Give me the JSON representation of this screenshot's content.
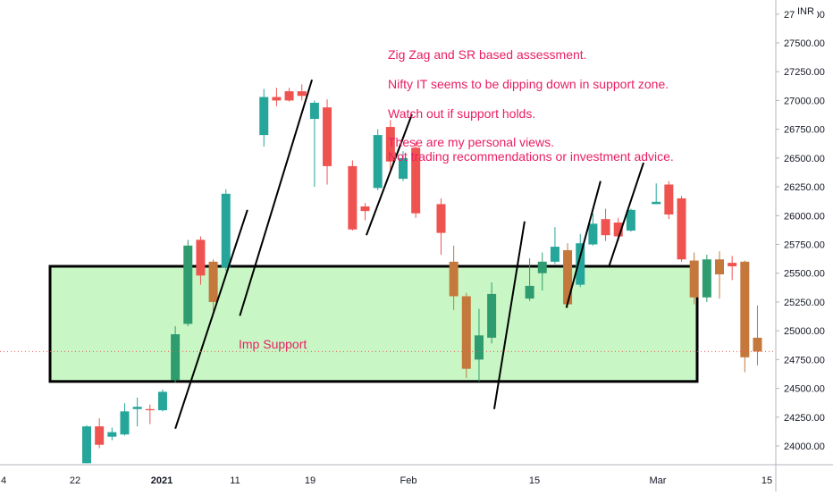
{
  "chart_data": {
    "type": "candlestick",
    "currency": "INR",
    "x_ticks": [
      "4",
      "22",
      "2021",
      "11",
      "19",
      "Feb",
      "15",
      "Mar",
      "15"
    ],
    "y_ticks": [
      "27750.00",
      "27500.00",
      "27250.00",
      "27000.00",
      "26750.00",
      "26500.00",
      "26250.00",
      "26000.00",
      "25750.00",
      "25500.00",
      "25250.00",
      "25000.00",
      "24750.00",
      "24500.00",
      "24250.00",
      "24000.00"
    ],
    "ylim": [
      23850,
      27800
    ],
    "colors": {
      "up": "#26a69a",
      "down": "#ef5350",
      "in_zone_up": "#2e9c6e",
      "in_zone_down": "#c4783c",
      "zone_fill": "#c8f7c5",
      "note_text": "#e91e63"
    },
    "candles": [
      {
        "x": 1,
        "o": 23850,
        "h": 24180,
        "l": 23850,
        "c": 24170
      },
      {
        "x": 2,
        "o": 24170,
        "h": 24240,
        "l": 23980,
        "c": 24010
      },
      {
        "x": 3,
        "o": 24080,
        "h": 24160,
        "l": 24050,
        "c": 24120
      },
      {
        "x": 4,
        "o": 24100,
        "h": 24370,
        "l": 24090,
        "c": 24300
      },
      {
        "x": 5,
        "o": 24320,
        "h": 24420,
        "l": 24170,
        "c": 24340
      },
      {
        "x": 6,
        "o": 24320,
        "h": 24360,
        "l": 24190,
        "c": 24310
      },
      {
        "x": 7,
        "o": 24310,
        "h": 24490,
        "l": 24300,
        "c": 24470
      },
      {
        "x": 8,
        "o": 24570,
        "h": 25040,
        "l": 24550,
        "c": 24970
      },
      {
        "x": 9,
        "o": 25060,
        "h": 25790,
        "l": 25040,
        "c": 25740
      },
      {
        "x": 10,
        "o": 25790,
        "h": 25820,
        "l": 25400,
        "c": 25480
      },
      {
        "x": 11,
        "o": 25600,
        "h": 25620,
        "l": 25170,
        "c": 25250
      },
      {
        "x": 12,
        "o": 25550,
        "h": 26230,
        "l": 25520,
        "c": 26190
      },
      {
        "x": 15,
        "o": 26700,
        "h": 27100,
        "l": 26600,
        "c": 27030
      },
      {
        "x": 16,
        "o": 27030,
        "h": 27110,
        "l": 26950,
        "c": 27000
      },
      {
        "x": 17,
        "o": 27080,
        "h": 27110,
        "l": 26990,
        "c": 27000
      },
      {
        "x": 18,
        "o": 27080,
        "h": 27140,
        "l": 27000,
        "c": 27040
      },
      {
        "x": 19,
        "o": 26840,
        "h": 27000,
        "l": 26250,
        "c": 26980
      },
      {
        "x": 20,
        "o": 26940,
        "h": 27010,
        "l": 26270,
        "c": 26430
      },
      {
        "x": 22,
        "o": 26430,
        "h": 26480,
        "l": 25870,
        "c": 25880
      },
      {
        "x": 23,
        "o": 26080,
        "h": 26110,
        "l": 25960,
        "c": 26040
      },
      {
        "x": 24,
        "o": 26240,
        "h": 26750,
        "l": 26220,
        "c": 26700
      },
      {
        "x": 25,
        "o": 26770,
        "h": 26830,
        "l": 26370,
        "c": 26470
      },
      {
        "x": 26,
        "o": 26320,
        "h": 26560,
        "l": 26300,
        "c": 26500
      },
      {
        "x": 27,
        "o": 26590,
        "h": 26640,
        "l": 25980,
        "c": 26020
      },
      {
        "x": 29,
        "o": 26100,
        "h": 26150,
        "l": 25660,
        "c": 25850
      },
      {
        "x": 30,
        "o": 25600,
        "h": 25740,
        "l": 25180,
        "c": 25300
      },
      {
        "x": 31,
        "o": 25300,
        "h": 25330,
        "l": 24590,
        "c": 24670
      },
      {
        "x": 32,
        "o": 24750,
        "h": 25190,
        "l": 24560,
        "c": 24960
      },
      {
        "x": 33,
        "o": 24940,
        "h": 25420,
        "l": 24890,
        "c": 25320
      },
      {
        "x": 36,
        "o": 25280,
        "h": 25630,
        "l": 25260,
        "c": 25390
      },
      {
        "x": 37,
        "o": 25500,
        "h": 25680,
        "l": 25350,
        "c": 25600
      },
      {
        "x": 38,
        "o": 25600,
        "h": 25900,
        "l": 25580,
        "c": 25730
      },
      {
        "x": 39,
        "o": 25700,
        "h": 25760,
        "l": 25200,
        "c": 25230
      },
      {
        "x": 40,
        "o": 25400,
        "h": 25840,
        "l": 25380,
        "c": 25760
      },
      {
        "x": 41,
        "o": 25750,
        "h": 26020,
        "l": 25740,
        "c": 25930
      },
      {
        "x": 42,
        "o": 25970,
        "h": 26060,
        "l": 25780,
        "c": 25830
      },
      {
        "x": 43,
        "o": 25940,
        "h": 25980,
        "l": 25780,
        "c": 25820
      },
      {
        "x": 44,
        "o": 25870,
        "h": 26060,
        "l": 25860,
        "c": 26050
      },
      {
        "x": 46,
        "o": 26100,
        "h": 26280,
        "l": 26100,
        "c": 26120
      },
      {
        "x": 47,
        "o": 26270,
        "h": 26300,
        "l": 25970,
        "c": 26010
      },
      {
        "x": 48,
        "o": 26150,
        "h": 26170,
        "l": 25600,
        "c": 25620
      },
      {
        "x": 49,
        "o": 25610,
        "h": 25680,
        "l": 25230,
        "c": 25290
      },
      {
        "x": 50,
        "o": 25290,
        "h": 25660,
        "l": 25250,
        "c": 25620
      },
      {
        "x": 51,
        "o": 25620,
        "h": 25690,
        "l": 25280,
        "c": 25490
      },
      {
        "x": 52,
        "o": 25590,
        "h": 25650,
        "l": 25440,
        "c": 25560
      },
      {
        "x": 53,
        "o": 25600,
        "h": 25610,
        "l": 24640,
        "c": 24770
      },
      {
        "x": 54,
        "o": 24940,
        "h": 25220,
        "l": 24700,
        "c": 24820
      }
    ],
    "zigzag_lines": [
      [
        [
          8,
          24150
        ],
        [
          13.7,
          26050
        ]
      ],
      [
        [
          13.1,
          25130
        ],
        [
          18.8,
          27180
        ]
      ],
      [
        [
          23.1,
          25830
        ],
        [
          26.7,
          26880
        ]
      ],
      [
        [
          33.2,
          24320
        ],
        [
          35.6,
          25950
        ]
      ],
      [
        [
          38.9,
          25200
        ],
        [
          41.6,
          26300
        ]
      ],
      [
        [
          42.3,
          25570
        ],
        [
          45,
          26460
        ]
      ]
    ],
    "support_zone": {
      "low": 24560,
      "high": 25560
    },
    "reference_line": 24820
  },
  "annotations": {
    "line1": "Zig Zag and SR based assessment.",
    "line2": "Nifty IT seems to be dipping down in support zone.",
    "line3": "Watch out if support holds.",
    "line4": "These are my personal views.",
    "line5": "Not trading recommendations or investment advice.",
    "support_label": "Imp Support"
  }
}
